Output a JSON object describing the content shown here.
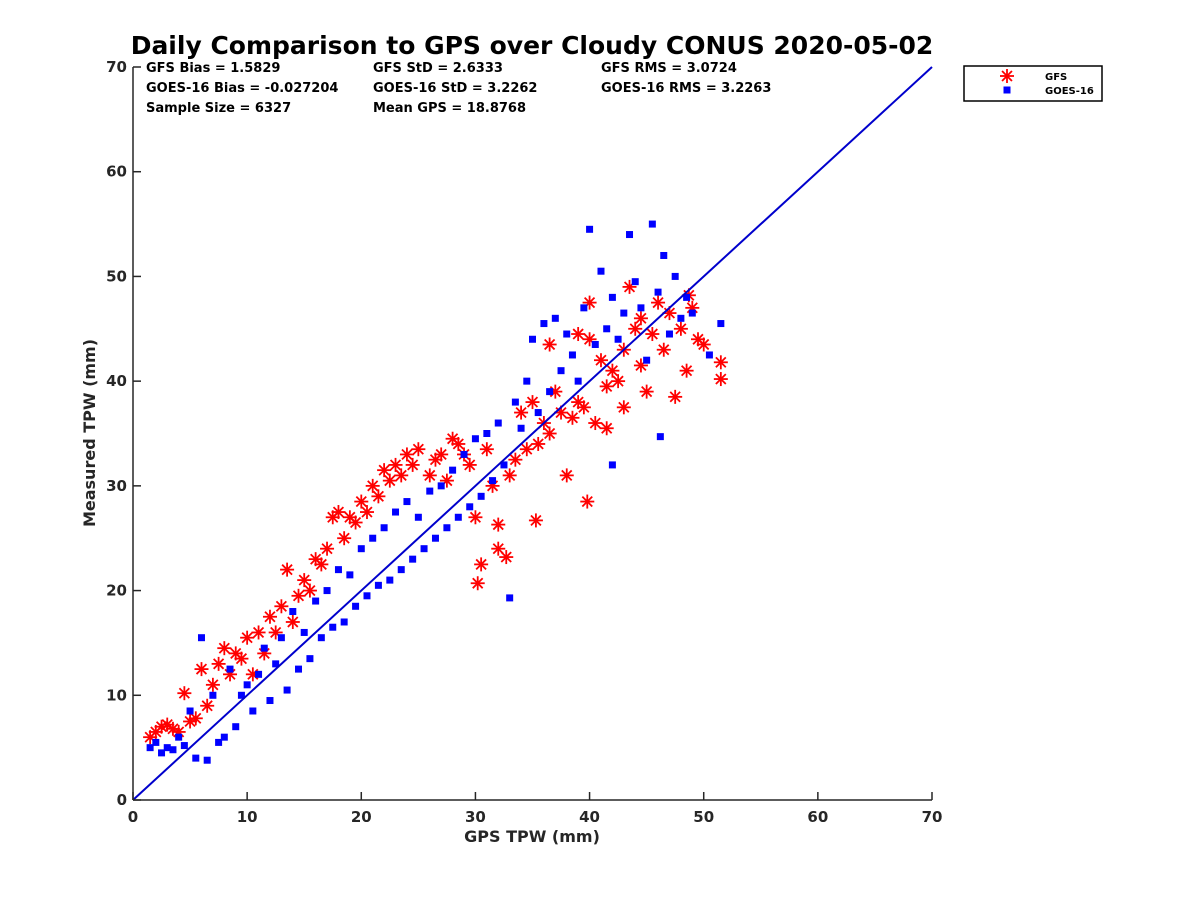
{
  "chart_data": {
    "type": "scatter",
    "title": "Daily Comparison to GPS over Cloudy CONUS 2020-05-02",
    "xlabel": "GPS TPW (mm)",
    "ylabel": "Measured TPW (mm)",
    "xlim": [
      0,
      70
    ],
    "ylim": [
      0,
      70
    ],
    "xticks": [
      0,
      10,
      20,
      30,
      40,
      50,
      60,
      70
    ],
    "yticks": [
      0,
      10,
      20,
      30,
      40,
      50,
      60,
      70
    ],
    "grid": false,
    "legend_position": "outside-top-right",
    "reference_line": {
      "name": "1:1 line",
      "from": [
        0,
        0
      ],
      "to": [
        70,
        70
      ],
      "color": "#0000cc"
    },
    "stats": {
      "gfs_bias": "GFS Bias = 1.5829",
      "gfs_std": "GFS StD = 2.6333",
      "gfs_rms": "GFS RMS = 3.0724",
      "goes_bias": "GOES-16 Bias = -0.027204",
      "goes_std": "GOES-16 StD = 3.2262",
      "goes_rms": "GOES-16 RMS = 3.2263",
      "sample_size": "Sample Size = 6327",
      "mean_gps": "Mean GPS = 18.8768"
    },
    "series": [
      {
        "name": "GFS",
        "marker": "asterisk",
        "color": "#ff0000",
        "points": [
          [
            1.5,
            6.0
          ],
          [
            2.0,
            6.5
          ],
          [
            2.5,
            7.0
          ],
          [
            3.0,
            7.2
          ],
          [
            3.5,
            6.8
          ],
          [
            4.0,
            6.5
          ],
          [
            4.5,
            10.2
          ],
          [
            5.0,
            7.5
          ],
          [
            5.5,
            7.8
          ],
          [
            6.0,
            12.5
          ],
          [
            6.5,
            9.0
          ],
          [
            7.0,
            11.0
          ],
          [
            7.5,
            13.0
          ],
          [
            8.0,
            14.5
          ],
          [
            8.5,
            12.0
          ],
          [
            9.0,
            14.0
          ],
          [
            9.5,
            13.5
          ],
          [
            10.0,
            15.5
          ],
          [
            10.5,
            12.0
          ],
          [
            11.0,
            16.0
          ],
          [
            11.5,
            14.0
          ],
          [
            12.0,
            17.5
          ],
          [
            12.5,
            16.0
          ],
          [
            13.0,
            18.5
          ],
          [
            13.5,
            22.0
          ],
          [
            14.0,
            17.0
          ],
          [
            14.5,
            19.5
          ],
          [
            15.0,
            21.0
          ],
          [
            15.5,
            20.0
          ],
          [
            16.0,
            23.0
          ],
          [
            16.5,
            22.5
          ],
          [
            17.0,
            24.0
          ],
          [
            17.5,
            27.0
          ],
          [
            18.0,
            27.5
          ],
          [
            18.5,
            25.0
          ],
          [
            19.0,
            27.0
          ],
          [
            19.5,
            26.5
          ],
          [
            20.0,
            28.5
          ],
          [
            20.5,
            27.5
          ],
          [
            21.0,
            30.0
          ],
          [
            21.5,
            29.0
          ],
          [
            22.0,
            31.5
          ],
          [
            22.5,
            30.5
          ],
          [
            23.0,
            32.0
          ],
          [
            23.5,
            31.0
          ],
          [
            24.0,
            33.0
          ],
          [
            24.5,
            32.0
          ],
          [
            25.0,
            33.5
          ],
          [
            26.0,
            31.0
          ],
          [
            26.5,
            32.5
          ],
          [
            27.0,
            33.0
          ],
          [
            27.5,
            30.5
          ],
          [
            28.0,
            34.5
          ],
          [
            28.5,
            34.0
          ],
          [
            29.0,
            33.0
          ],
          [
            29.5,
            32.0
          ],
          [
            30.0,
            27.0
          ],
          [
            30.5,
            22.5
          ],
          [
            30.2,
            20.7
          ],
          [
            31.0,
            33.5
          ],
          [
            31.5,
            30.0
          ],
          [
            32.0,
            24.0
          ],
          [
            32.0,
            26.3
          ],
          [
            32.7,
            23.2
          ],
          [
            33.0,
            31.0
          ],
          [
            33.5,
            32.5
          ],
          [
            34.0,
            37.0
          ],
          [
            34.5,
            33.5
          ],
          [
            35.0,
            38.0
          ],
          [
            35.3,
            26.7
          ],
          [
            35.5,
            34.0
          ],
          [
            36.0,
            36.0
          ],
          [
            36.5,
            35.0
          ],
          [
            37.0,
            39.0
          ],
          [
            37.5,
            37.0
          ],
          [
            38.0,
            31.0
          ],
          [
            38.5,
            36.5
          ],
          [
            39.0,
            38.0
          ],
          [
            39.5,
            37.5
          ],
          [
            39.8,
            28.5
          ],
          [
            40.0,
            44.0
          ],
          [
            40.5,
            36.0
          ],
          [
            41.0,
            42.0
          ],
          [
            41.5,
            35.5
          ],
          [
            42.0,
            41.0
          ],
          [
            42.5,
            40.0
          ],
          [
            43.0,
            43.0
          ],
          [
            43.5,
            49.0
          ],
          [
            44.0,
            45.0
          ],
          [
            44.5,
            46.0
          ],
          [
            45.0,
            39.0
          ],
          [
            45.5,
            44.5
          ],
          [
            46.0,
            47.5
          ],
          [
            46.5,
            43.0
          ],
          [
            47.0,
            46.5
          ],
          [
            47.5,
            38.5
          ],
          [
            48.0,
            45.0
          ],
          [
            48.5,
            41.0
          ],
          [
            49.0,
            47.0
          ],
          [
            49.5,
            44.0
          ],
          [
            50.0,
            43.5
          ],
          [
            51.5,
            40.2
          ],
          [
            51.5,
            41.8
          ],
          [
            48.7,
            48.2
          ],
          [
            40.0,
            47.5
          ],
          [
            36.5,
            43.5
          ],
          [
            43.0,
            37.5
          ],
          [
            41.5,
            39.5
          ],
          [
            44.5,
            41.5
          ],
          [
            39.0,
            44.5
          ]
        ]
      },
      {
        "name": "GOES-16",
        "marker": "square",
        "color": "#0000ff",
        "points": [
          [
            1.5,
            5.0
          ],
          [
            2.0,
            5.5
          ],
          [
            2.5,
            4.5
          ],
          [
            3.0,
            5.0
          ],
          [
            3.5,
            4.8
          ],
          [
            4.0,
            6.0
          ],
          [
            4.5,
            5.2
          ],
          [
            5.0,
            8.5
          ],
          [
            5.5,
            4.0
          ],
          [
            6.0,
            15.5
          ],
          [
            6.5,
            3.8
          ],
          [
            7.0,
            10.0
          ],
          [
            7.5,
            5.5
          ],
          [
            8.0,
            6.0
          ],
          [
            8.5,
            12.5
          ],
          [
            9.0,
            7.0
          ],
          [
            9.5,
            10.0
          ],
          [
            10.0,
            11.0
          ],
          [
            10.5,
            8.5
          ],
          [
            11.0,
            12.0
          ],
          [
            11.5,
            14.5
          ],
          [
            12.0,
            9.5
          ],
          [
            12.5,
            13.0
          ],
          [
            13.0,
            15.5
          ],
          [
            13.5,
            10.5
          ],
          [
            14.0,
            18.0
          ],
          [
            14.5,
            12.5
          ],
          [
            15.0,
            16.0
          ],
          [
            15.5,
            13.5
          ],
          [
            16.0,
            19.0
          ],
          [
            16.5,
            15.5
          ],
          [
            17.0,
            20.0
          ],
          [
            17.5,
            16.5
          ],
          [
            18.0,
            22.0
          ],
          [
            18.5,
            17.0
          ],
          [
            19.0,
            21.5
          ],
          [
            19.5,
            18.5
          ],
          [
            20.0,
            24.0
          ],
          [
            20.5,
            19.5
          ],
          [
            21.0,
            25.0
          ],
          [
            21.5,
            20.5
          ],
          [
            22.0,
            26.0
          ],
          [
            22.5,
            21.0
          ],
          [
            23.0,
            27.5
          ],
          [
            23.5,
            22.0
          ],
          [
            24.0,
            28.5
          ],
          [
            24.5,
            23.0
          ],
          [
            25.0,
            27.0
          ],
          [
            25.5,
            24.0
          ],
          [
            26.0,
            29.5
          ],
          [
            26.5,
            25.0
          ],
          [
            27.0,
            30.0
          ],
          [
            27.5,
            26.0
          ],
          [
            28.0,
            31.5
          ],
          [
            28.5,
            27.0
          ],
          [
            29.0,
            33.0
          ],
          [
            29.5,
            28.0
          ],
          [
            30.0,
            34.5
          ],
          [
            30.5,
            29.0
          ],
          [
            31.0,
            35.0
          ],
          [
            31.5,
            30.5
          ],
          [
            32.0,
            36.0
          ],
          [
            32.5,
            32.0
          ],
          [
            33.0,
            19.3
          ],
          [
            33.5,
            38.0
          ],
          [
            34.0,
            35.5
          ],
          [
            34.5,
            40.0
          ],
          [
            35.0,
            44.0
          ],
          [
            35.5,
            37.0
          ],
          [
            36.0,
            45.5
          ],
          [
            36.5,
            39.0
          ],
          [
            37.0,
            46.0
          ],
          [
            37.5,
            41.0
          ],
          [
            38.0,
            44.5
          ],
          [
            38.5,
            42.5
          ],
          [
            39.0,
            40.0
          ],
          [
            39.5,
            47.0
          ],
          [
            40.0,
            54.5
          ],
          [
            40.5,
            43.5
          ],
          [
            41.0,
            50.5
          ],
          [
            41.5,
            45.0
          ],
          [
            42.0,
            48.0
          ],
          [
            42.5,
            44.0
          ],
          [
            43.0,
            46.5
          ],
          [
            43.5,
            54.0
          ],
          [
            44.0,
            49.5
          ],
          [
            44.5,
            47.0
          ],
          [
            45.0,
            42.0
          ],
          [
            45.5,
            55.0
          ],
          [
            46.0,
            48.5
          ],
          [
            46.5,
            52.0
          ],
          [
            47.0,
            44.5
          ],
          [
            47.5,
            50.0
          ],
          [
            48.0,
            46.0
          ],
          [
            48.5,
            48.0
          ],
          [
            49.0,
            46.5
          ],
          [
            50.5,
            42.5
          ],
          [
            51.5,
            45.5
          ],
          [
            46.2,
            34.7
          ],
          [
            42.0,
            32.0
          ]
        ]
      }
    ]
  }
}
